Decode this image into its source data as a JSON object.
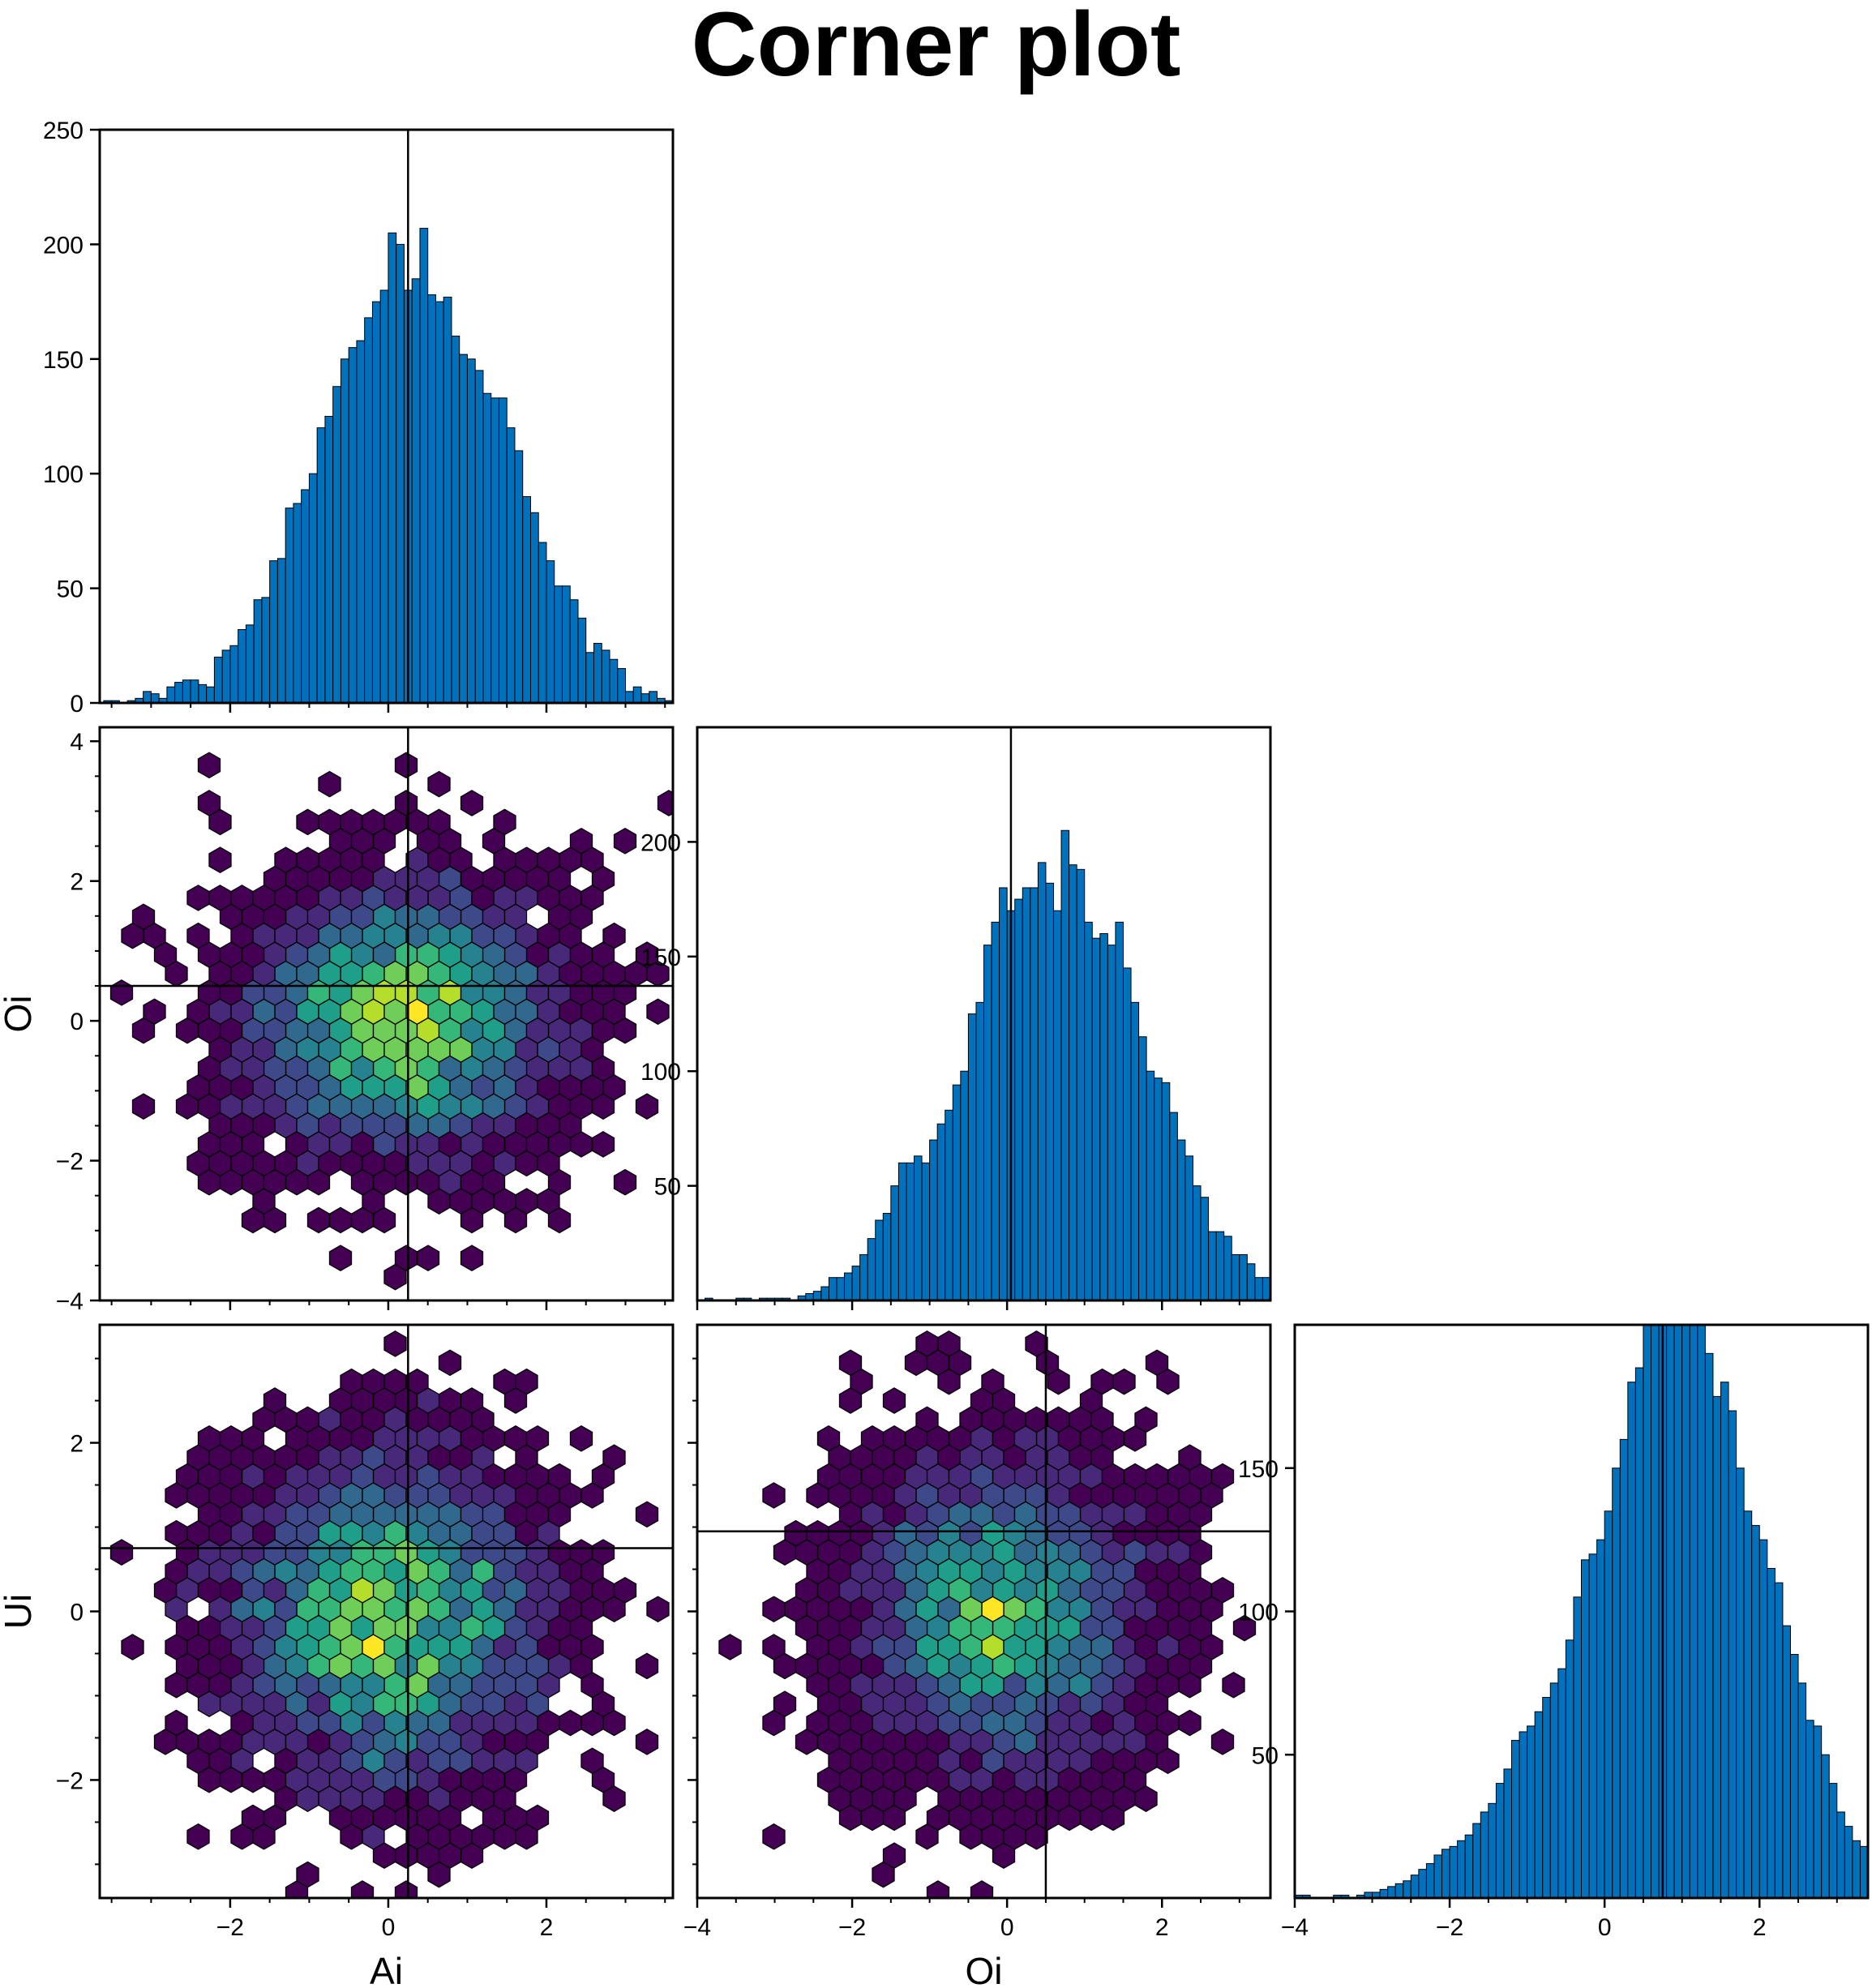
{
  "title": "Corner plot",
  "colors": {
    "histogram_fill": "#0072BD",
    "outline": "#000000",
    "viridis": [
      "#440154",
      "#482878",
      "#3e4989",
      "#31688e",
      "#26828e",
      "#1f9e89",
      "#35b779",
      "#6ece58",
      "#b5de2b",
      "#fde725"
    ]
  },
  "chart_data": [
    {
      "panel": "hist-Ai",
      "type": "bar",
      "row": 0,
      "col": 0,
      "x_range": [
        -3.65,
        3.6
      ],
      "ylim": [
        0,
        250
      ],
      "y_ticks": [
        0,
        50,
        100,
        150,
        200,
        250
      ],
      "y_tick_labels": [
        "0",
        "50",
        "100",
        "150",
        "200",
        "250"
      ],
      "x_ticks": [
        -2,
        0,
        2
      ],
      "x_tick_labels": [],
      "marker_x": 0.25,
      "bin_start": -3.6,
      "bin_width": 0.1,
      "values": [
        1,
        1,
        0,
        1,
        2,
        5,
        4,
        2,
        7,
        9,
        10,
        10,
        8,
        7,
        20,
        23,
        25,
        32,
        34,
        45,
        46,
        62,
        63,
        85,
        87,
        93,
        100,
        120,
        125,
        138,
        150,
        155,
        158,
        168,
        175,
        180,
        205,
        200,
        180,
        185,
        207,
        178,
        175,
        177,
        160,
        152,
        150,
        145,
        135,
        133,
        133,
        120,
        110,
        90,
        83,
        70,
        62,
        51,
        51,
        45,
        37,
        22,
        26,
        23,
        19,
        15,
        5,
        7,
        4,
        5,
        2,
        1,
        0
      ]
    },
    {
      "panel": "hexbin-Ai-Oi",
      "type": "heatmap",
      "row": 1,
      "col": 0,
      "x_range": [
        -3.65,
        3.6
      ],
      "y_range": [
        -4,
        4.2
      ],
      "x_ticks": [
        -2,
        0,
        2
      ],
      "x_tick_labels": [],
      "y_ticks": [
        -4,
        -2,
        0,
        2,
        4
      ],
      "y_tick_labels": [
        "−4",
        "−2",
        "0",
        "2",
        "4"
      ],
      "ylabel": "Oi",
      "marker_x": 0.25,
      "marker_y": 0.5,
      "x_center": 0.2,
      "y_center": 0.0,
      "x_std": 1.0,
      "y_std": 1.0
    },
    {
      "panel": "hist-Oi",
      "type": "bar",
      "row": 1,
      "col": 1,
      "x_range": [
        -4,
        3.4
      ],
      "ylim": [
        0,
        250
      ],
      "y_ticks": [
        50,
        100,
        150,
        200
      ],
      "y_tick_labels": [
        "50",
        "100",
        "150",
        "200"
      ],
      "x_ticks": [
        -4,
        -2,
        0,
        2
      ],
      "x_tick_labels": [],
      "marker_x": 0.05,
      "bin_start": -3.9,
      "bin_width": 0.1,
      "values": [
        1,
        0,
        0,
        0,
        1,
        1,
        0,
        1,
        1,
        1,
        1,
        0,
        2,
        3,
        4,
        6,
        10,
        10,
        12,
        15,
        20,
        27,
        35,
        38,
        50,
        60,
        60,
        63,
        60,
        70,
        77,
        83,
        94,
        100,
        125,
        130,
        155,
        165,
        180,
        170,
        175,
        180,
        180,
        191,
        182,
        170,
        205,
        190,
        188,
        165,
        158,
        160,
        155,
        165,
        145,
        130,
        115,
        100,
        97,
        95,
        82,
        70,
        63,
        50,
        45,
        30,
        30,
        28,
        20,
        20,
        16,
        10,
        10,
        10,
        8,
        3,
        3,
        2,
        2,
        2,
        1,
        1,
        1,
        0
      ]
    },
    {
      "panel": "hexbin-Ai-Ui",
      "type": "heatmap",
      "row": 2,
      "col": 0,
      "x_range": [
        -3.65,
        3.6
      ],
      "y_range": [
        -3.4,
        3.4
      ],
      "x_ticks": [
        -2,
        0,
        2
      ],
      "x_tick_labels": [
        "−2",
        "0",
        "2"
      ],
      "y_ticks": [
        -2,
        0,
        2
      ],
      "y_tick_labels": [
        "−2",
        "0",
        "2"
      ],
      "xlabel": "Ai",
      "ylabel": "Ui",
      "marker_x": 0.25,
      "marker_y": 0.75,
      "x_center": 0.0,
      "y_center": -0.1,
      "x_std": 1.0,
      "y_std": 1.0
    },
    {
      "panel": "hexbin-Oi-Ui",
      "type": "heatmap",
      "row": 2,
      "col": 1,
      "x_range": [
        -4,
        3.4
      ],
      "y_range": [
        -3.4,
        3.4
      ],
      "x_ticks": [
        -4,
        -2,
        0,
        2
      ],
      "x_tick_labels": [
        "−4",
        "−2",
        "0",
        "2"
      ],
      "y_ticks": [
        -2,
        0,
        2
      ],
      "y_tick_labels": [],
      "xlabel": "Oi",
      "marker_x": 0.5,
      "marker_y": 0.95,
      "x_center": -0.1,
      "y_center": 0.0,
      "x_std": 1.0,
      "y_std": 1.0
    },
    {
      "panel": "hist-Ui",
      "type": "bar",
      "row": 2,
      "col": 2,
      "x_range": [
        -4,
        3.4
      ],
      "ylim": [
        0,
        200
      ],
      "y_ticks": [
        50,
        100,
        150
      ],
      "y_tick_labels": [
        "50",
        "100",
        "150"
      ],
      "x_ticks": [
        -4,
        -2,
        0,
        2
      ],
      "x_tick_labels": [
        "−4",
        "−2",
        "0",
        "2"
      ],
      "marker_x": 0.75,
      "bin_start": -4.0,
      "bin_width": 0.1,
      "values": [
        1,
        1,
        0,
        0,
        0,
        1,
        1,
        0,
        1,
        2,
        2,
        3,
        4,
        5,
        6,
        8,
        10,
        12,
        15,
        17,
        18,
        20,
        22,
        26,
        30,
        33,
        40,
        45,
        55,
        58,
        60,
        65,
        70,
        75,
        80,
        90,
        105,
        118,
        120,
        125,
        135,
        150,
        160,
        180,
        185,
        200,
        205,
        210,
        215,
        205,
        210,
        200,
        210,
        190,
        175,
        180,
        170,
        150,
        135,
        130,
        125,
        115,
        110,
        95,
        85,
        75,
        62,
        60,
        50,
        40,
        30,
        25,
        20,
        18,
        13,
        10,
        6,
        5,
        4,
        3,
        2,
        1,
        1,
        0
      ]
    }
  ]
}
